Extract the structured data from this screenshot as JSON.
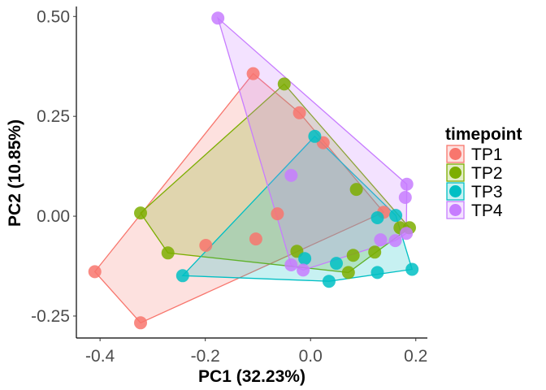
{
  "chart_data": {
    "type": "scatter",
    "title": "",
    "xlabel": "PC1 (32.23%)",
    "ylabel": "PC2 (10.85%)",
    "xlim": [
      -0.445,
      0.222
    ],
    "ylim": [
      -0.305,
      0.525
    ],
    "x_ticks": [
      -0.4,
      -0.2,
      0.0,
      0.2
    ],
    "x_tick_labels": [
      "-0.4",
      "-0.2",
      "0.0",
      "0.2"
    ],
    "y_ticks": [
      0.5,
      0.25,
      0.0,
      -0.25
    ],
    "y_tick_labels": [
      "0.50",
      "0.25",
      "0.00",
      "-0.25"
    ],
    "grid": false,
    "legend": {
      "title": "timepoint",
      "position": "right"
    },
    "hulls": true,
    "series": [
      {
        "name": "TP1",
        "color": "#F8766D",
        "points": [
          [
            -0.41,
            -0.139
          ],
          [
            -0.323,
            -0.267
          ],
          [
            -0.199,
            -0.073
          ],
          [
            -0.109,
            0.357
          ],
          [
            -0.104,
            -0.057
          ],
          [
            -0.063,
            0.006
          ],
          [
            -0.021,
            0.259
          ],
          [
            0.024,
            0.184
          ],
          [
            0.139,
            0.01
          ]
        ]
      },
      {
        "name": "TP2",
        "color": "#7CAE00",
        "points": [
          [
            -0.323,
            0.008
          ],
          [
            -0.271,
            -0.092
          ],
          [
            -0.05,
            0.331
          ],
          [
            -0.026,
            -0.088
          ],
          [
            0.087,
            0.067
          ],
          [
            0.081,
            -0.098
          ],
          [
            0.072,
            -0.141
          ],
          [
            0.122,
            -0.09
          ],
          [
            0.17,
            -0.029
          ],
          [
            0.188,
            -0.029
          ]
        ]
      },
      {
        "name": "TP3",
        "color": "#00BFC4",
        "points": [
          [
            -0.243,
            -0.149
          ],
          [
            -0.011,
            -0.106
          ],
          [
            0.008,
            0.2
          ],
          [
            0.035,
            -0.163
          ],
          [
            0.049,
            -0.118
          ],
          [
            0.127,
            -0.141
          ],
          [
            0.127,
            -0.004
          ],
          [
            0.162,
            0.002
          ],
          [
            0.193,
            -0.133
          ]
        ]
      },
      {
        "name": "TP4",
        "color": "#C77CFF",
        "points": [
          [
            -0.176,
            0.496
          ],
          [
            -0.037,
            0.102
          ],
          [
            -0.037,
            -0.122
          ],
          [
            -0.014,
            -0.135
          ],
          [
            0.133,
            -0.059
          ],
          [
            0.161,
            -0.061
          ],
          [
            0.182,
            -0.043
          ],
          [
            0.18,
            0.047
          ],
          [
            0.183,
            0.08
          ]
        ]
      }
    ]
  }
}
